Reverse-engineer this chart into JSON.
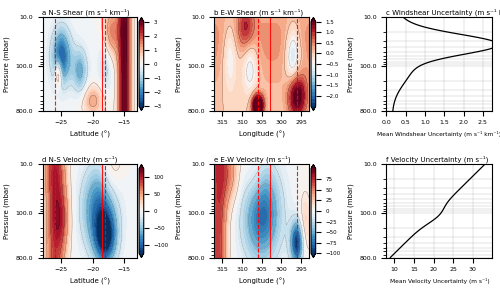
{
  "panels": {
    "a": {
      "label": "a N-S Shear (m s⁻¹ km⁻¹)"
    },
    "b": {
      "label": "b E-W Shear (m s⁻¹ km⁻¹)"
    },
    "c": {
      "label": "c Windshear Uncertainty (m s⁻¹ km⁻¹)"
    },
    "d": {
      "label": "d N-S Velocity (m s⁻¹)"
    },
    "e": {
      "label": "e E-W Velocity (m s⁻¹)"
    },
    "f": {
      "label": "f Velocity Uncertainty (m s⁻¹)"
    }
  },
  "xlabel_lat": "Latitude (°)",
  "xlabel_lon": "Longitude (°)",
  "ylabel": "Pressure (mbar)",
  "xlabel_c": "Mean Windshear Uncertainty (m s⁻¹ km⁻¹)",
  "xlabel_f": "Mean Velocity Uncertainty (m s⁻¹)",
  "red_dashed_lats": [
    -26.0,
    -18.0
  ],
  "red_solid_lat": -18.5,
  "red_dashed_lons": [
    306.0,
    296.0
  ],
  "red_solid_lon": 303.0,
  "shear_cbar_ticks": [
    -3,
    -2,
    -1,
    0,
    1,
    2,
    3
  ],
  "ew_shear_cbar_ticks": [
    -2.0,
    -1.5,
    -1.0,
    -0.5,
    0.0,
    0.5,
    1.0,
    1.5
  ],
  "vel_cbar_ticks": [
    -100,
    -50,
    0,
    50,
    100
  ],
  "ew_vel_cbar_ticks": [
    -100,
    -75,
    -50,
    -25,
    0,
    25,
    50,
    75
  ],
  "background_color": "#ffffff"
}
